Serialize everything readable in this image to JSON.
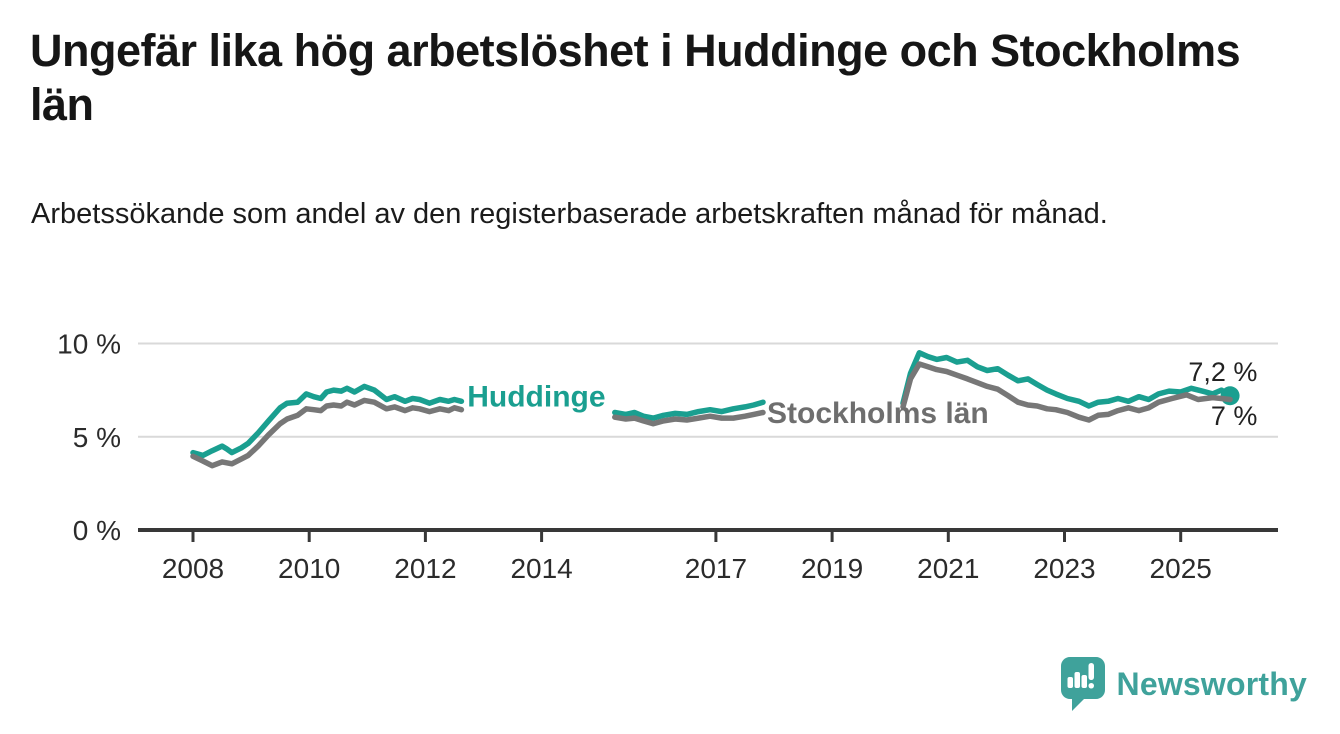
{
  "header": {
    "title": "Ungefär lika hög arbetslöshet i Huddinge och Stockholms län",
    "title_lines": [
      "Ungefär lika hög arbetslöshet i Huddinge och Stockholms",
      "län"
    ],
    "subtitle": "Arbetssökande som andel av den registerbaserade arbetskraften månad för månad."
  },
  "footer": {
    "brand": "Newsworthy",
    "logo_icon": "newsworthy-speech-bubble-bar-chart-icon",
    "logo_color": "#3FA29B"
  },
  "chart_data": {
    "type": "line",
    "title": "Ungefär lika hög arbetslöshet i Huddinge och Stockholms län",
    "subtitle": "Arbetssökande som andel av den registerbaserade arbetskraften månad för månad.",
    "unit": "%",
    "xlim": [
      2007.05,
      2026.7
    ],
    "ylim": [
      0,
      10.7
    ],
    "grid": "horizontal-only",
    "legend_position": "inline-labels-on-lines",
    "x_ticks": [
      {
        "v": 2008,
        "label": "2008"
      },
      {
        "v": 2010,
        "label": "2010"
      },
      {
        "v": 2012,
        "label": "2012"
      },
      {
        "v": 2014,
        "label": "2014"
      },
      {
        "v": 2017,
        "label": "2017"
      },
      {
        "v": 2019,
        "label": "2019"
      },
      {
        "v": 2021,
        "label": "2021"
      },
      {
        "v": 2023,
        "label": "2023"
      },
      {
        "v": 2025,
        "label": "2025"
      }
    ],
    "y_ticks": [
      {
        "v": 0,
        "label": "0 %"
      },
      {
        "v": 5,
        "label": "5 %"
      },
      {
        "v": 10,
        "label": "10 %"
      }
    ],
    "axis_color": "#383838",
    "grid_color": "#d9d9d9",
    "series": [
      {
        "name": "Huddinge",
        "color": "#1A9F90",
        "end_dot": true,
        "end_label": "7,2 %",
        "end_label_anchor": {
          "year": 2026.32,
          "baseline_value": 7.99
        },
        "inline_label": {
          "text": "Huddinge",
          "year": 2012.72,
          "baseline_value": 6.62
        },
        "segments": [
          [
            [
              2008.0,
              4.15
            ],
            [
              2008.17,
              4.0
            ],
            [
              2008.33,
              4.25
            ],
            [
              2008.5,
              4.5
            ],
            [
              2008.58,
              4.35
            ],
            [
              2008.67,
              4.15
            ],
            [
              2008.83,
              4.4
            ],
            [
              2008.95,
              4.65
            ],
            [
              2009.12,
              5.2
            ],
            [
              2009.3,
              5.85
            ],
            [
              2009.5,
              6.55
            ],
            [
              2009.62,
              6.8
            ],
            [
              2009.8,
              6.85
            ],
            [
              2009.95,
              7.3
            ],
            [
              2010.08,
              7.15
            ],
            [
              2010.2,
              7.05
            ],
            [
              2010.3,
              7.4
            ],
            [
              2010.42,
              7.5
            ],
            [
              2010.55,
              7.45
            ],
            [
              2010.65,
              7.6
            ],
            [
              2010.78,
              7.4
            ],
            [
              2010.95,
              7.7
            ],
            [
              2011.12,
              7.5
            ],
            [
              2011.33,
              7.0
            ],
            [
              2011.47,
              7.15
            ],
            [
              2011.65,
              6.9
            ],
            [
              2011.78,
              7.05
            ],
            [
              2011.9,
              7.0
            ],
            [
              2012.07,
              6.8
            ],
            [
              2012.25,
              7.0
            ],
            [
              2012.4,
              6.9
            ],
            [
              2012.5,
              7.0
            ],
            [
              2012.62,
              6.9
            ]
          ],
          [
            [
              2015.26,
              6.3
            ],
            [
              2015.45,
              6.2
            ],
            [
              2015.6,
              6.3
            ],
            [
              2015.75,
              6.1
            ],
            [
              2015.92,
              6.0
            ],
            [
              2016.1,
              6.15
            ],
            [
              2016.3,
              6.25
            ],
            [
              2016.5,
              6.2
            ],
            [
              2016.7,
              6.35
            ],
            [
              2016.9,
              6.45
            ],
            [
              2017.1,
              6.35
            ],
            [
              2017.3,
              6.5
            ],
            [
              2017.5,
              6.6
            ],
            [
              2017.65,
              6.7
            ],
            [
              2017.81,
              6.85
            ]
          ],
          [
            [
              2020.22,
              6.8
            ],
            [
              2020.35,
              8.4
            ],
            [
              2020.5,
              9.5
            ],
            [
              2020.65,
              9.3
            ],
            [
              2020.8,
              9.15
            ],
            [
              2020.97,
              9.25
            ],
            [
              2021.15,
              9.0
            ],
            [
              2021.33,
              9.1
            ],
            [
              2021.5,
              8.75
            ],
            [
              2021.67,
              8.55
            ],
            [
              2021.85,
              8.65
            ],
            [
              2022.03,
              8.3
            ],
            [
              2022.2,
              8.0
            ],
            [
              2022.37,
              8.1
            ],
            [
              2022.53,
              7.8
            ],
            [
              2022.7,
              7.5
            ],
            [
              2022.85,
              7.3
            ],
            [
              2023.05,
              7.05
            ],
            [
              2023.25,
              6.9
            ],
            [
              2023.42,
              6.65
            ],
            [
              2023.58,
              6.85
            ],
            [
              2023.75,
              6.9
            ],
            [
              2023.92,
              7.05
            ],
            [
              2024.1,
              6.9
            ],
            [
              2024.28,
              7.15
            ],
            [
              2024.45,
              7.0
            ],
            [
              2024.62,
              7.3
            ],
            [
              2024.8,
              7.45
            ],
            [
              2025.0,
              7.4
            ],
            [
              2025.18,
              7.6
            ],
            [
              2025.37,
              7.45
            ],
            [
              2025.55,
              7.3
            ],
            [
              2025.7,
              7.5
            ],
            [
              2025.85,
              7.2
            ]
          ]
        ]
      },
      {
        "name": "Stockholms län",
        "color": "#777777",
        "end_dot": false,
        "end_label": "7 %",
        "end_label_anchor": {
          "year": 2026.32,
          "baseline_value": 5.63
        },
        "inline_label": {
          "text": "Stockholms län",
          "year": 2017.88,
          "baseline_value": 5.74
        },
        "segments": [
          [
            [
              2008.0,
              3.95
            ],
            [
              2008.17,
              3.7
            ],
            [
              2008.33,
              3.45
            ],
            [
              2008.5,
              3.65
            ],
            [
              2008.67,
              3.55
            ],
            [
              2008.83,
              3.8
            ],
            [
              2008.95,
              4.0
            ],
            [
              2009.12,
              4.5
            ],
            [
              2009.3,
              5.1
            ],
            [
              2009.5,
              5.7
            ],
            [
              2009.62,
              5.95
            ],
            [
              2009.8,
              6.15
            ],
            [
              2009.95,
              6.5
            ],
            [
              2010.08,
              6.45
            ],
            [
              2010.2,
              6.4
            ],
            [
              2010.3,
              6.65
            ],
            [
              2010.42,
              6.7
            ],
            [
              2010.55,
              6.65
            ],
            [
              2010.65,
              6.85
            ],
            [
              2010.78,
              6.7
            ],
            [
              2010.95,
              6.95
            ],
            [
              2011.12,
              6.85
            ],
            [
              2011.33,
              6.5
            ],
            [
              2011.47,
              6.6
            ],
            [
              2011.65,
              6.4
            ],
            [
              2011.78,
              6.55
            ],
            [
              2011.9,
              6.5
            ],
            [
              2012.07,
              6.35
            ],
            [
              2012.25,
              6.5
            ],
            [
              2012.4,
              6.4
            ],
            [
              2012.5,
              6.55
            ],
            [
              2012.62,
              6.45
            ]
          ],
          [
            [
              2015.26,
              6.05
            ],
            [
              2015.45,
              5.95
            ],
            [
              2015.6,
              6.0
            ],
            [
              2015.75,
              5.85
            ],
            [
              2015.92,
              5.7
            ],
            [
              2016.1,
              5.85
            ],
            [
              2016.3,
              5.95
            ],
            [
              2016.5,
              5.9
            ],
            [
              2016.7,
              6.0
            ],
            [
              2016.9,
              6.1
            ],
            [
              2017.1,
              6.0
            ],
            [
              2017.3,
              6.0
            ],
            [
              2017.5,
              6.1
            ],
            [
              2017.65,
              6.2
            ],
            [
              2017.81,
              6.3
            ]
          ],
          [
            [
              2020.22,
              6.6
            ],
            [
              2020.35,
              8.1
            ],
            [
              2020.5,
              8.9
            ],
            [
              2020.65,
              8.75
            ],
            [
              2020.8,
              8.6
            ],
            [
              2020.97,
              8.5
            ],
            [
              2021.15,
              8.3
            ],
            [
              2021.33,
              8.1
            ],
            [
              2021.5,
              7.9
            ],
            [
              2021.67,
              7.7
            ],
            [
              2021.85,
              7.55
            ],
            [
              2022.03,
              7.2
            ],
            [
              2022.2,
              6.85
            ],
            [
              2022.37,
              6.7
            ],
            [
              2022.53,
              6.65
            ],
            [
              2022.7,
              6.5
            ],
            [
              2022.85,
              6.45
            ],
            [
              2023.05,
              6.3
            ],
            [
              2023.25,
              6.05
            ],
            [
              2023.42,
              5.9
            ],
            [
              2023.58,
              6.15
            ],
            [
              2023.75,
              6.2
            ],
            [
              2023.92,
              6.4
            ],
            [
              2024.1,
              6.55
            ],
            [
              2024.28,
              6.4
            ],
            [
              2024.45,
              6.55
            ],
            [
              2024.62,
              6.85
            ],
            [
              2024.85,
              7.05
            ],
            [
              2025.1,
              7.25
            ],
            [
              2025.3,
              7.0
            ],
            [
              2025.55,
              7.1
            ],
            [
              2025.7,
              7.05
            ],
            [
              2025.85,
              7.0
            ]
          ]
        ]
      }
    ]
  }
}
